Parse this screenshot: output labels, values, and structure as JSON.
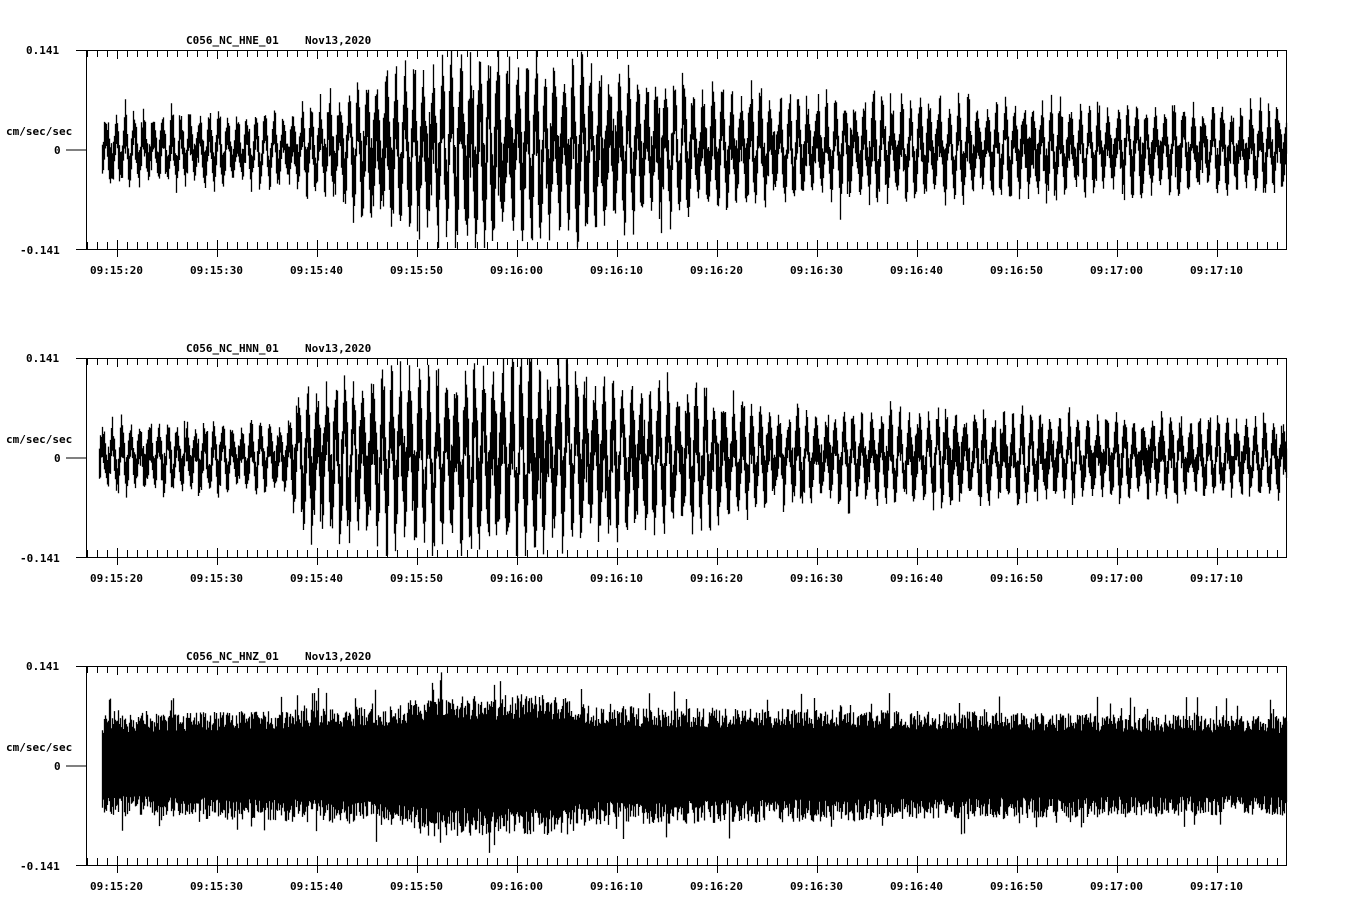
{
  "chart_data": [
    {
      "type": "line",
      "title": "C056_NC_HNE_01",
      "date": "Nov13,2020",
      "channel": "HNE",
      "ylabel": "cm/sec/sec",
      "ylim": [
        -0.141,
        0.141
      ],
      "yticks": [
        "0.141",
        "0",
        "-0.141"
      ],
      "xlabel": "",
      "xticks": [
        "09:15:20",
        "09:15:30",
        "09:15:40",
        "09:15:50",
        "09:16:00",
        "09:16:10",
        "09:16:20",
        "09:16:30",
        "09:16:40",
        "09:16:50",
        "09:17:00",
        "09:17:10"
      ],
      "x_start": "09:15:16.9",
      "x_end": "09:17:16.9",
      "trace_start": "09:15:18.5",
      "grid": false,
      "envelope": [
        [
          0,
          0.045
        ],
        [
          20,
          0.05
        ],
        [
          25,
          0.07
        ],
        [
          29,
          0.1
        ],
        [
          38,
          0.13
        ],
        [
          45,
          0.12
        ],
        [
          55,
          0.1
        ],
        [
          70,
          0.07
        ],
        [
          85,
          0.065
        ],
        [
          100,
          0.06
        ],
        [
          120,
          0.055
        ]
      ],
      "peak_max": 0.11,
      "peak_min": -0.135
    },
    {
      "type": "line",
      "title": "C056_NC_HNN_01",
      "date": "Nov13,2020",
      "channel": "HNN",
      "ylabel": "cm/sec/sec",
      "ylim": [
        -0.141,
        0.141
      ],
      "yticks": [
        "0.141",
        "0",
        "-0.141"
      ],
      "xlabel": "",
      "xticks": [
        "09:15:20",
        "09:15:30",
        "09:15:40",
        "09:15:50",
        "09:16:00",
        "09:16:10",
        "09:16:20",
        "09:16:30",
        "09:16:40",
        "09:16:50",
        "09:17:00",
        "09:17:10"
      ],
      "x_start": "09:15:16.9",
      "x_end": "09:17:16.9",
      "trace_start": "09:15:18.2",
      "grid": false,
      "envelope": [
        [
          0,
          0.045
        ],
        [
          20,
          0.05
        ],
        [
          22,
          0.1
        ],
        [
          35,
          0.12
        ],
        [
          45,
          0.13
        ],
        [
          55,
          0.1
        ],
        [
          62,
          0.09
        ],
        [
          70,
          0.06
        ],
        [
          90,
          0.06
        ],
        [
          120,
          0.05
        ]
      ],
      "peak_max": 0.12,
      "peak_min": -0.125
    },
    {
      "type": "line",
      "title": "C056_NC_HNZ_01",
      "date": "Nov13,2020",
      "channel": "HNZ",
      "ylabel": "cm/sec/sec",
      "ylim": [
        -0.141,
        0.141
      ],
      "yticks": [
        "0.141",
        "0",
        "-0.141"
      ],
      "xlabel": "",
      "xticks": [
        "09:15:20",
        "09:15:30",
        "09:15:40",
        "09:15:50",
        "09:16:00",
        "09:16:10",
        "09:16:20",
        "09:16:30",
        "09:16:40",
        "09:16:50",
        "09:17:00",
        "09:17:10"
      ],
      "x_start": "09:15:16.9",
      "x_end": "09:17:16.9",
      "trace_start": "09:15:18.5",
      "grid": false,
      "envelope": [
        [
          0,
          0.07
        ],
        [
          30,
          0.085
        ],
        [
          34,
          0.1
        ],
        [
          48,
          0.1
        ],
        [
          50,
          0.085
        ],
        [
          120,
          0.07
        ]
      ],
      "peak_max": 0.125,
      "peak_min": -0.1
    }
  ]
}
